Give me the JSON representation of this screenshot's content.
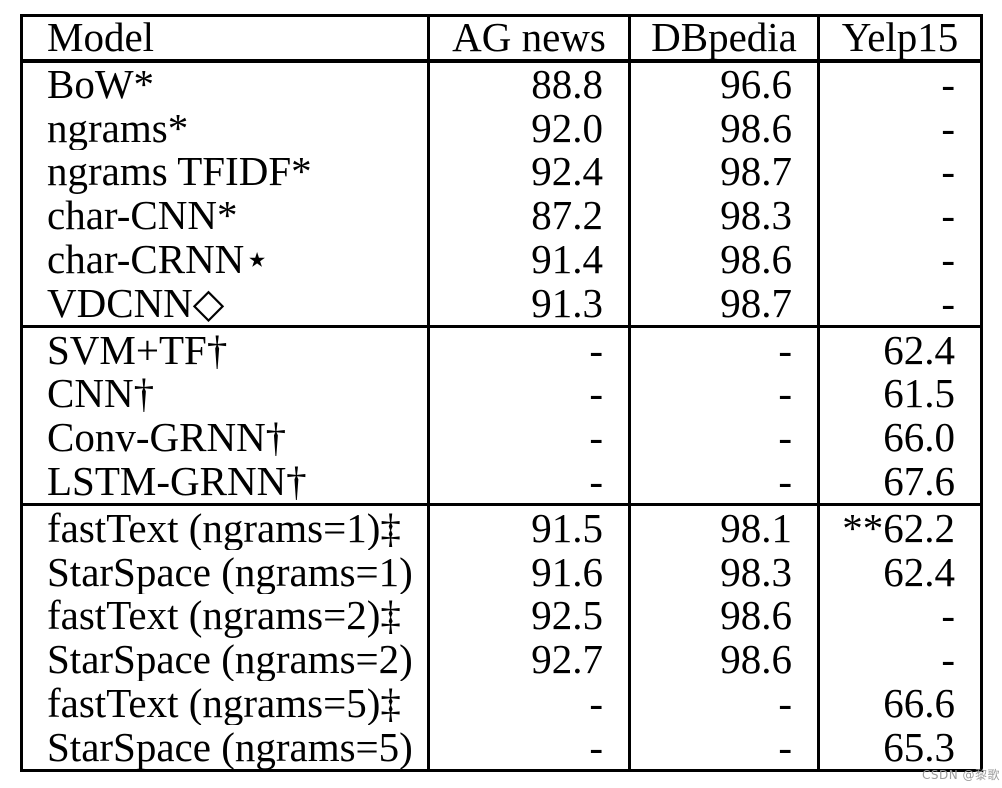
{
  "watermark": {
    "text": "CSDN @黎歌",
    "color": "#9b9b9b"
  },
  "table": {
    "border_color": "#000000",
    "text_color": "#000000",
    "columns": [
      {
        "label": "Model"
      },
      {
        "label": "AG news"
      },
      {
        "label": "DBpedia"
      },
      {
        "label": "Yelp15"
      }
    ],
    "sections": [
      {
        "rows": [
          {
            "model": "BoW*",
            "values": [
              "88.8",
              "96.6",
              "-"
            ]
          },
          {
            "model": "ngrams*",
            "values": [
              "92.0",
              "98.6",
              "-"
            ]
          },
          {
            "model": "ngrams TFIDF*",
            "values": [
              "92.4",
              "98.7",
              "-"
            ]
          },
          {
            "model": "char-CNN*",
            "values": [
              "87.2",
              "98.3",
              "-"
            ]
          },
          {
            "model": "char-CRNN⋆",
            "values": [
              "91.4",
              "98.6",
              "-"
            ]
          },
          {
            "model": "VDCNN◇",
            "values": [
              "91.3",
              "98.7",
              "-"
            ]
          }
        ]
      },
      {
        "rows": [
          {
            "model": "SVM+TF†",
            "values": [
              "-",
              "-",
              "62.4"
            ]
          },
          {
            "model": "CNN†",
            "values": [
              "-",
              "-",
              "61.5"
            ]
          },
          {
            "model": "Conv-GRNN†",
            "values": [
              "-",
              "-",
              "66.0"
            ]
          },
          {
            "model": "LSTM-GRNN†",
            "values": [
              "-",
              "-",
              "67.6"
            ]
          }
        ]
      },
      {
        "rows": [
          {
            "model": "fastText (ngrams=1)‡",
            "values": [
              "91.5",
              "98.1",
              "**62.2"
            ]
          },
          {
            "model": "StarSpace (ngrams=1)",
            "values": [
              "91.6",
              "98.3",
              "62.4"
            ]
          },
          {
            "model": "fastText (ngrams=2)‡",
            "values": [
              "92.5",
              "98.6",
              "-"
            ]
          },
          {
            "model": "StarSpace (ngrams=2)",
            "values": [
              "92.7",
              "98.6",
              "-"
            ]
          },
          {
            "model": "fastText (ngrams=5)‡",
            "values": [
              "-",
              "-",
              "66.6"
            ]
          },
          {
            "model": "StarSpace (ngrams=5)",
            "values": [
              "-",
              "-",
              "65.3"
            ]
          }
        ]
      }
    ]
  }
}
